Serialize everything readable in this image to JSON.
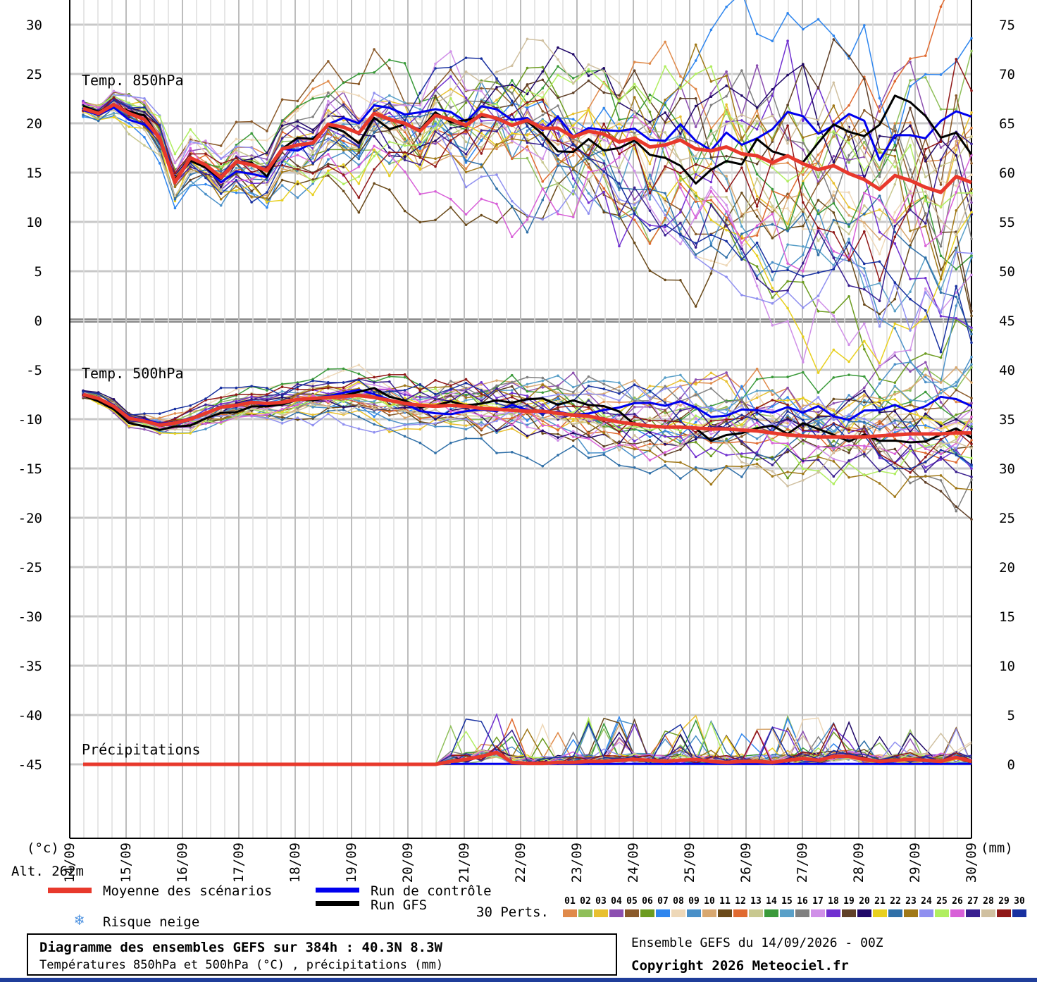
{
  "chart_data": {
    "type": "line",
    "left_axis": {
      "ticks": [
        "30",
        "25",
        "20",
        "15",
        "10",
        "5",
        "0",
        "-5",
        "-10",
        "-15",
        "-20",
        "-25",
        "-30",
        "-35",
        "-40",
        "-45"
      ],
      "unit": "(°c)"
    },
    "right_axis": {
      "ticks": [
        "75",
        "70",
        "65",
        "60",
        "55",
        "50",
        "45",
        "40",
        "35",
        "30",
        "25",
        "20",
        "15",
        "10",
        "5",
        "0"
      ],
      "unit": "(mm)"
    },
    "x_ticks": [
      "14/09",
      "15/09",
      "16/09",
      "17/09",
      "18/09",
      "19/09",
      "20/09",
      "21/09",
      "22/09",
      "23/09",
      "24/09",
      "25/09",
      "26/09",
      "27/09",
      "28/09",
      "29/09",
      "30/09"
    ],
    "altitude_label": "Alt. 262m",
    "panels": {
      "t850": {
        "label": "Temp. 850hPa"
      },
      "t500": {
        "label": "Temp. 500hPa"
      },
      "precip": {
        "label": "Précipitations"
      }
    },
    "mean_series": {
      "name": "Moyenne des scénarios",
      "color": "#e8392c",
      "t850": [
        21.5,
        21.0,
        21.9,
        21.0,
        20.4,
        18.5,
        14.0,
        16.5,
        15.8,
        14.5,
        16.1,
        15.8,
        15.2,
        17.4,
        17.8,
        18.0,
        19.9,
        19.6,
        19.0,
        21.0,
        20.4,
        20.0,
        19.2,
        20.8,
        20.4,
        19.8,
        20.9,
        20.5,
        19.8,
        20.3,
        19.5,
        19.5,
        18.6,
        19.2,
        18.9,
        18.1,
        18.5,
        17.6,
        17.8,
        18.3,
        17.4,
        17.2,
        17.6,
        16.9,
        16.7,
        16.0,
        16.7,
        15.9,
        15.3,
        15.7,
        14.9,
        14.3,
        13.3,
        14.7,
        14.2,
        13.5,
        13.0,
        14.6,
        14.0
      ],
      "t500": [
        -7.5,
        -7.9,
        -8.7,
        -9.9,
        -10.2,
        -10.6,
        -10.4,
        -10.0,
        -9.4,
        -8.8,
        -8.6,
        -8.3,
        -8.4,
        -8.3,
        -8.0,
        -7.9,
        -7.8,
        -7.7,
        -7.6,
        -7.8,
        -8.1,
        -8.4,
        -8.6,
        -8.7,
        -8.6,
        -8.7,
        -8.9,
        -9.0,
        -9.1,
        -9.2,
        -9.2,
        -9.4,
        -9.6,
        -9.7,
        -10.0,
        -10.3,
        -10.5,
        -10.7,
        -10.8,
        -10.8,
        -10.9,
        -11.0,
        -11.0,
        -11.1,
        -11.2,
        -11.4,
        -11.6,
        -11.7,
        -11.8,
        -11.8,
        -11.8,
        -11.8,
        -11.7,
        -11.6,
        -11.5,
        -11.5,
        -11.5,
        -11.4,
        -11.4
      ],
      "precip": [
        0,
        0,
        0,
        0,
        0,
        0,
        0,
        0,
        0,
        0,
        0,
        0,
        0,
        0,
        0,
        0,
        0,
        0,
        0,
        0,
        0,
        0,
        0,
        0,
        0.3,
        0.5,
        0.8,
        1.2,
        0.2,
        0.1,
        0.1,
        0.2,
        0.2,
        0.3,
        0.3,
        0.4,
        0.5,
        0.4,
        0.3,
        0.4,
        0.5,
        0.3,
        0.2,
        0.3,
        0.3,
        0.2,
        0.4,
        0.6,
        0.4,
        0.8,
        0.8,
        0.5,
        0.3,
        0.4,
        0.5,
        0.4,
        0.3,
        0.7,
        0.3
      ]
    },
    "control_series": {
      "name": "Run de contrôle",
      "color": "#0000ee"
    },
    "gfs_series": {
      "name": "Run GFS",
      "color": "#000000"
    },
    "snow_label": "Risque neige",
    "perturbations": {
      "label": "30 Perts.",
      "numbers": [
        "01",
        "02",
        "03",
        "04",
        "05",
        "06",
        "07",
        "08",
        "09",
        "10",
        "11",
        "12",
        "13",
        "14",
        "15",
        "16",
        "17",
        "18",
        "19",
        "20",
        "21",
        "22",
        "23",
        "24",
        "25",
        "26",
        "27",
        "28",
        "29",
        "30"
      ],
      "colors": [
        "#e08a4a",
        "#8fbf5a",
        "#e8c030",
        "#8c4fb0",
        "#8a5a2a",
        "#6c9c20",
        "#2f86ee",
        "#eed8b8",
        "#4a90c8",
        "#d8a870",
        "#6a4a1a",
        "#e06a30",
        "#c8c890",
        "#3a9a3a",
        "#5aa0c8",
        "#808080",
        "#d090e8",
        "#7030d0",
        "#604028",
        "#200868",
        "#e8d020",
        "#3070a8",
        "#a07818",
        "#9090f0",
        "#b0ee60",
        "#d860d8",
        "#3a2090",
        "#d0c0a0",
        "#901818",
        "#1830a0"
      ]
    },
    "title": "Diagramme des ensembles GEFS sur 384h : 40.3N 8.3W",
    "subtitle": "Températures 850hPa et 500hPa (°C) , précipitations (mm)",
    "run_info": "Ensemble GEFS du 14/09/2026 - 00Z",
    "copyright": "Copyright 2026 Meteociel.fr"
  }
}
